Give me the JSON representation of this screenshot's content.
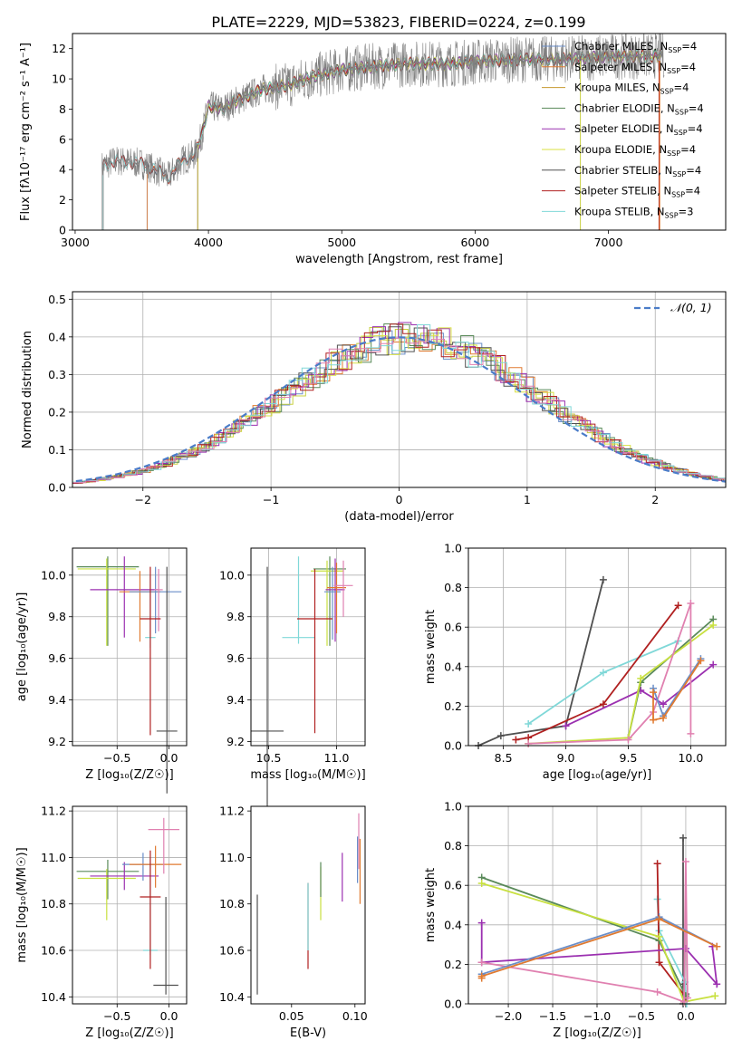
{
  "figure": {
    "title": "PLATE=2229, MJD=53823, FIBERID=0224, z=0.199"
  },
  "chart_data": [
    {
      "id": "spectrum",
      "type": "line",
      "xlabel": "wavelength [Angstrom, rest frame]",
      "ylabel": "Flux [fλ10⁻¹⁷ erg cm⁻² s⁻¹ A⁻¹]",
      "xlim": [
        2980,
        7880
      ],
      "ylim": [
        0,
        13
      ],
      "xticks": [
        3000,
        4000,
        5000,
        6000,
        7000
      ],
      "yticks": [
        0,
        2,
        4,
        6,
        8,
        10,
        12
      ],
      "grid": false,
      "legend_position": "top-right",
      "data_series": {
        "name": "",
        "color": "#808080",
        "x": [
          3200,
          3300,
          3400,
          3500,
          3600,
          3700,
          3800,
          3900,
          3950,
          4000,
          4100,
          4200,
          4400,
          4600,
          4800,
          5000,
          5200,
          5500,
          5800,
          6100,
          6400,
          6700,
          7000,
          7300,
          7400
        ],
        "y": [
          4.2,
          4.6,
          4.5,
          4.4,
          4.0,
          3.5,
          4.6,
          5.0,
          6.3,
          8.2,
          8.0,
          8.5,
          9.3,
          9.6,
          10.2,
          10.6,
          10.8,
          11.0,
          11.0,
          11.2,
          11.3,
          11.3,
          11.5,
          11.5,
          11.6
        ]
      },
      "series": [
        {
          "name": "Chabrier MILES, N",
          "sub": "SSP",
          "suffix": "=4",
          "color": "#6a8ec8",
          "x_start": 3540
        },
        {
          "name": "Salpeter MILES, N",
          "sub": "SSP",
          "suffix": "=4",
          "color": "#e07a30",
          "x_start": 3540
        },
        {
          "name": "Kroupa MILES, N",
          "sub": "SSP",
          "suffix": "=4",
          "color": "#c79a30",
          "x_start": 3920
        },
        {
          "name": "Chabrier ELODIE, N",
          "sub": "SSP",
          "suffix": "=4",
          "color": "#5a8a5a",
          "x_start": 3920
        },
        {
          "name": "Salpeter ELODIE, N",
          "sub": "SSP",
          "suffix": "=4",
          "color": "#9b30b0",
          "x_start": 3920
        },
        {
          "name": "Kroupa ELODIE, N",
          "sub": "SSP",
          "suffix": "=4",
          "color": "#d8e040",
          "x_start": 3920
        },
        {
          "name": "Chabrier STELIB, N",
          "sub": "SSP",
          "suffix": "=4",
          "color": "#505050",
          "x_start": 3210
        },
        {
          "name": "Salpeter STELIB, N",
          "sub": "SSP",
          "suffix": "=4",
          "color": "#b02020",
          "x_start": 3210
        },
        {
          "name": "Kroupa STELIB, N",
          "sub": "SSP",
          "suffix": "=3",
          "color": "#80d8d8",
          "x_start": 3210
        }
      ]
    },
    {
      "id": "residuals",
      "type": "histogram",
      "xlabel": "(data-model)/error",
      "ylabel": "Normed distribution",
      "xlim": [
        -2.55,
        2.55
      ],
      "ylim": [
        0,
        0.52
      ],
      "xticks": [
        -2,
        -1,
        0,
        1,
        2
      ],
      "yticks": [
        0.0,
        0.1,
        0.2,
        0.3,
        0.4,
        0.5
      ],
      "grid": true,
      "legend": [
        {
          "name": "𝒩(0, 1)",
          "color": "#4a7cc8",
          "style": "dashed"
        }
      ],
      "bin_width": 0.1,
      "series_colors": [
        "#6a8ec8",
        "#e07a30",
        "#c8d040",
        "#5a8a5a",
        "#9b30b0",
        "#d8e040",
        "#505050",
        "#b02020",
        "#80d8d8",
        "#e080b0"
      ]
    },
    {
      "id": "age-vs-Z",
      "type": "errorbar",
      "xlabel": "Z [log₁₀(Z/Z☉)]",
      "ylabel": "age  [log₁₀(age/yr)]",
      "xlim": [
        -0.93,
        0.17
      ],
      "ylim": [
        9.18,
        10.13
      ],
      "xticks": [
        -0.5,
        0.0
      ],
      "yticks": [
        9.2,
        9.4,
        9.6,
        9.8,
        10.0
      ],
      "grid": true,
      "points": [
        {
          "x": -0.59,
          "y": 10.04,
          "xerr": 0.3,
          "yerr_lo": 0.38,
          "yerr_hi": 0.05,
          "color": "#5a8a5a"
        },
        {
          "x": -0.6,
          "y": 10.03,
          "xerr": 0.28,
          "yerr_lo": 0.37,
          "yerr_hi": 0.05,
          "color": "#c8e040"
        },
        {
          "x": -0.43,
          "y": 9.93,
          "xerr": 0.33,
          "yerr_lo": 0.23,
          "yerr_hi": 0.16,
          "color": "#9b30b0"
        },
        {
          "x": -0.28,
          "y": 9.92,
          "xerr": 0.2,
          "yerr_lo": 0.24,
          "yerr_hi": 0.1,
          "color": "#e07a30"
        },
        {
          "x": -0.13,
          "y": 9.92,
          "xerr": 0.25,
          "yerr_lo": 0.2,
          "yerr_hi": 0.12,
          "color": "#6a8ec8"
        },
        {
          "x": -0.1,
          "y": 9.93,
          "xerr": 0.04,
          "yerr_lo": 0.2,
          "yerr_hi": 0.1,
          "color": "#e080b0"
        },
        {
          "x": -0.18,
          "y": 9.7,
          "xerr": 0.05,
          "yerr_lo": 0.05,
          "yerr_hi": 0.3,
          "color": "#80d8d8"
        },
        {
          "x": -0.18,
          "y": 9.79,
          "xerr": 0.1,
          "yerr_lo": 0.56,
          "yerr_hi": 0.25,
          "color": "#b02020"
        },
        {
          "x": -0.02,
          "y": 9.25,
          "xerr": 0.1,
          "yerr_lo": 0.3,
          "yerr_hi": 0.79,
          "color": "#505050"
        }
      ]
    },
    {
      "id": "age-vs-mass",
      "type": "errorbar",
      "xlabel": "mass [log₁₀(M/M☉)]",
      "ylabel": "",
      "xlim": [
        10.37,
        11.21
      ],
      "ylim": [
        9.18,
        10.13
      ],
      "xticks": [
        10.5,
        11.0
      ],
      "yticks": [
        9.2,
        9.4,
        9.6,
        9.8,
        10.0
      ],
      "grid": true,
      "points": [
        {
          "x": 10.95,
          "y": 10.03,
          "xerr": 0.12,
          "yerr_lo": 0.37,
          "yerr_hi": 0.06,
          "color": "#5a8a5a"
        },
        {
          "x": 10.93,
          "y": 10.02,
          "xerr": 0.12,
          "yerr_lo": 0.36,
          "yerr_hi": 0.05,
          "color": "#c8e040"
        },
        {
          "x": 10.99,
          "y": 9.93,
          "xerr": 0.07,
          "yerr_lo": 0.25,
          "yerr_hi": 0.15,
          "color": "#9b30b0"
        },
        {
          "x": 10.97,
          "y": 9.92,
          "xerr": 0.06,
          "yerr_lo": 0.23,
          "yerr_hi": 0.12,
          "color": "#6a8ec8"
        },
        {
          "x": 11.0,
          "y": 9.94,
          "xerr": 0.07,
          "yerr_lo": 0.22,
          "yerr_hi": 0.12,
          "color": "#e07a30"
        },
        {
          "x": 11.05,
          "y": 9.95,
          "xerr": 0.07,
          "yerr_lo": 0.15,
          "yerr_hi": 0.12,
          "color": "#e080b0"
        },
        {
          "x": 10.72,
          "y": 9.7,
          "xerr": 0.12,
          "yerr_lo": 0.03,
          "yerr_hi": 0.39,
          "color": "#80d8d8"
        },
        {
          "x": 10.84,
          "y": 9.79,
          "xerr": 0.13,
          "yerr_lo": 0.55,
          "yerr_hi": 0.24,
          "color": "#b02020"
        },
        {
          "x": 10.49,
          "y": 9.25,
          "xerr": 0.12,
          "yerr_lo": 0.36,
          "yerr_hi": 0.79,
          "color": "#505050"
        }
      ]
    },
    {
      "id": "weight-vs-age",
      "type": "line",
      "xlabel": "age  [log₁₀(age/yr)]",
      "ylabel": "mass weight",
      "xlim": [
        8.22,
        10.28
      ],
      "ylim": [
        0,
        1.0
      ],
      "xticks": [
        8.5,
        9.0,
        9.5,
        10.0
      ],
      "yticks": [
        0.0,
        0.2,
        0.4,
        0.6,
        0.8,
        1.0
      ],
      "grid": true,
      "series": [
        {
          "color": "#505050",
          "x": [
            8.3,
            8.48,
            9.0,
            9.3
          ],
          "y": [
            0.0,
            0.05,
            0.1,
            0.84
          ]
        },
        {
          "color": "#80d8d8",
          "x": [
            8.7,
            9.3,
            9.9
          ],
          "y": [
            0.11,
            0.37,
            0.53
          ]
        },
        {
          "color": "#b02020",
          "x": [
            8.6,
            8.7,
            9.3,
            9.9
          ],
          "y": [
            0.03,
            0.04,
            0.21,
            0.71
          ]
        },
        {
          "color": "#9b30b0",
          "x": [
            9.0,
            9.6,
            9.78,
            10.18
          ],
          "y": [
            0.1,
            0.28,
            0.21,
            0.41
          ]
        },
        {
          "color": "#5a8a5a",
          "x": [
            9.5,
            9.6,
            10.18
          ],
          "y": [
            0.04,
            0.32,
            0.64
          ]
        },
        {
          "color": "#c8e040",
          "x": [
            8.7,
            9.5,
            9.6,
            10.18
          ],
          "y": [
            0.01,
            0.04,
            0.34,
            0.61
          ]
        },
        {
          "color": "#e080b0",
          "x": [
            8.7,
            9.5,
            9.7,
            10.0,
            10.0
          ],
          "y": [
            0.01,
            0.03,
            0.17,
            0.72,
            0.06
          ]
        },
        {
          "color": "#6a8ec8",
          "x": [
            9.7,
            9.78,
            10.08
          ],
          "y": [
            0.29,
            0.15,
            0.44
          ]
        },
        {
          "color": "#e07a30",
          "x": [
            9.7,
            9.7,
            9.78,
            10.08
          ],
          "y": [
            0.27,
            0.13,
            0.14,
            0.43
          ]
        }
      ]
    },
    {
      "id": "mass-vs-Z",
      "type": "errorbar",
      "xlabel": "Z [log₁₀(Z/Z☉)]",
      "ylabel": "mass [log₁₀(M/M☉)]",
      "xlim": [
        -0.93,
        0.17
      ],
      "ylim": [
        10.37,
        11.22
      ],
      "xticks": [
        -0.5,
        0.0
      ],
      "yticks": [
        10.4,
        10.6,
        10.8,
        11.0,
        11.2
      ],
      "grid": true,
      "points": [
        {
          "x": -0.59,
          "y": 10.94,
          "xerr": 0.3,
          "yerr_lo": 0.12,
          "yerr_hi": 0.05,
          "color": "#5a8a5a"
        },
        {
          "x": -0.6,
          "y": 10.91,
          "xerr": 0.28,
          "yerr_lo": 0.18,
          "yerr_hi": 0.04,
          "color": "#c8e040"
        },
        {
          "x": -0.43,
          "y": 10.92,
          "xerr": 0.33,
          "yerr_lo": 0.06,
          "yerr_hi": 0.06,
          "color": "#9b30b0"
        },
        {
          "x": -0.25,
          "y": 10.97,
          "xerr": 0.2,
          "yerr_lo": 0.07,
          "yerr_hi": 0.05,
          "color": "#6a8ec8"
        },
        {
          "x": -0.13,
          "y": 10.97,
          "xerr": 0.25,
          "yerr_lo": 0.1,
          "yerr_hi": 0.08,
          "color": "#e07a30"
        },
        {
          "x": -0.05,
          "y": 11.12,
          "xerr": 0.15,
          "yerr_lo": 0.19,
          "yerr_hi": 0.05,
          "color": "#e080b0"
        },
        {
          "x": -0.18,
          "y": 10.6,
          "xerr": 0.07,
          "yerr_lo": 0.02,
          "yerr_hi": 0.4,
          "color": "#80d8d8"
        },
        {
          "x": -0.18,
          "y": 10.83,
          "xerr": 0.1,
          "yerr_lo": 0.31,
          "yerr_hi": 0.2,
          "color": "#b02020"
        },
        {
          "x": -0.03,
          "y": 10.45,
          "xerr": 0.12,
          "yerr_lo": 0.04,
          "yerr_hi": 0.38,
          "color": "#505050"
        }
      ]
    },
    {
      "id": "mass-vs-EBV",
      "type": "errorbar",
      "xlabel": "E(B-V)",
      "ylabel": "",
      "xlim": [
        0.018,
        0.108
      ],
      "ylim": [
        10.37,
        11.22
      ],
      "xticks": [
        0.05,
        0.1
      ],
      "yticks": [
        10.4,
        10.6,
        10.8,
        11.0,
        11.2
      ],
      "grid": false,
      "points": [
        {
          "x": 0.023,
          "y": 10.45,
          "xerr": 0.0,
          "yerr_lo": 0.04,
          "yerr_hi": 0.39,
          "color": "#505050"
        },
        {
          "x": 0.063,
          "y": 10.83,
          "xerr": 0.0,
          "yerr_lo": 0.31,
          "yerr_hi": 0.06,
          "color": "#b02020"
        },
        {
          "x": 0.063,
          "y": 10.75,
          "xerr": 0.0,
          "yerr_lo": 0.15,
          "yerr_hi": 0.14,
          "color": "#80d8d8"
        },
        {
          "x": 0.073,
          "y": 10.9,
          "xerr": 0.0,
          "yerr_lo": 0.17,
          "yerr_hi": 0.06,
          "color": "#c8e040"
        },
        {
          "x": 0.073,
          "y": 10.93,
          "xerr": 0.0,
          "yerr_lo": 0.1,
          "yerr_hi": 0.05,
          "color": "#5a8a5a"
        },
        {
          "x": 0.09,
          "y": 10.92,
          "xerr": 0.0,
          "yerr_lo": 0.11,
          "yerr_hi": 0.1,
          "color": "#9b30b0"
        },
        {
          "x": 0.102,
          "y": 10.97,
          "xerr": 0.0,
          "yerr_lo": 0.08,
          "yerr_hi": 0.12,
          "color": "#6a8ec8"
        },
        {
          "x": 0.104,
          "y": 10.97,
          "xerr": 0.0,
          "yerr_lo": 0.17,
          "yerr_hi": 0.11,
          "color": "#e07a30"
        },
        {
          "x": 0.103,
          "y": 11.05,
          "xerr": 0.0,
          "yerr_lo": 0.1,
          "yerr_hi": 0.14,
          "color": "#e080b0"
        }
      ]
    },
    {
      "id": "weight-vs-Z",
      "type": "line",
      "xlabel": "Z [log₁₀(Z/Z☉)]",
      "ylabel": "mass weight",
      "xlim": [
        -2.45,
        0.45
      ],
      "ylim": [
        0,
        1.0
      ],
      "xticks": [
        -2.0,
        -1.5,
        -1.0,
        -0.5,
        0.0
      ],
      "yticks": [
        0.0,
        0.2,
        0.4,
        0.6,
        0.8,
        1.0
      ],
      "grid": true,
      "series": [
        {
          "color": "#505050",
          "x": [
            -0.03,
            -0.03,
            -0.03,
            0.0
          ],
          "y": [
            0.84,
            0.1,
            0.0,
            0.05
          ]
        },
        {
          "color": "#80d8d8",
          "x": [
            -0.32,
            -0.3,
            -0.01,
            0.01
          ],
          "y": [
            0.53,
            0.37,
            0.11,
            0.0
          ]
        },
        {
          "color": "#b02020",
          "x": [
            -0.32,
            -0.3,
            -0.01,
            0.0
          ],
          "y": [
            0.71,
            0.21,
            0.04,
            0.03
          ]
        },
        {
          "color": "#9b30b0",
          "x": [
            -2.3,
            -2.3,
            0.0,
            0.35,
            0.3
          ],
          "y": [
            0.41,
            0.21,
            0.28,
            0.1,
            0.29
          ]
        },
        {
          "color": "#5a8a5a",
          "x": [
            -2.3,
            -0.3,
            0.0
          ],
          "y": [
            0.64,
            0.32,
            0.04
          ]
        },
        {
          "color": "#c8e040",
          "x": [
            -2.3,
            -0.3,
            -0.02,
            0.33
          ],
          "y": [
            0.61,
            0.34,
            0.01,
            0.04
          ]
        },
        {
          "color": "#e080b0",
          "x": [
            -2.3,
            -0.32,
            -0.02,
            0.0,
            0.02
          ],
          "y": [
            0.21,
            0.06,
            0.01,
            0.72,
            0.03
          ]
        },
        {
          "color": "#6a8ec8",
          "x": [
            -2.3,
            -0.3,
            0.35
          ],
          "y": [
            0.15,
            0.44,
            0.29
          ]
        },
        {
          "color": "#e07a30",
          "x": [
            -2.3,
            -2.3,
            -0.3,
            0.35
          ],
          "y": [
            0.13,
            0.14,
            0.43,
            0.29
          ]
        }
      ]
    }
  ]
}
